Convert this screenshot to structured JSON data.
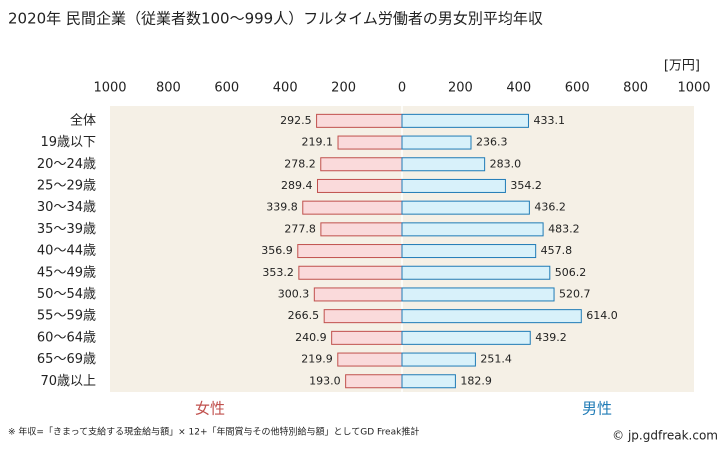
{
  "chart_data": {
    "type": "butterfly",
    "title": "2020年 民間企業（従業者数100～999人）フルタイム労働者の男女別平均年収",
    "unit": "[万円]",
    "categories": [
      "全体",
      "19歳以下",
      "20～24歳",
      "25～29歳",
      "30～34歳",
      "35～39歳",
      "40～44歳",
      "45～49歳",
      "50～54歳",
      "55～59歳",
      "60～64歳",
      "65～69歳",
      "70歳以上"
    ],
    "series": [
      {
        "name": "女性",
        "color": "#c0504d",
        "fill": "#fadadb",
        "side": "left",
        "values": [
          292.5,
          219.1,
          278.2,
          289.4,
          339.8,
          277.8,
          356.9,
          353.2,
          300.3,
          266.5,
          240.9,
          219.9,
          193.0
        ],
        "value_labels": [
          "292.5",
          "219.1",
          "278.2",
          "289.4",
          "339.8",
          "277.8",
          "356.9",
          "353.2",
          "300.3",
          "266.5",
          "240.9",
          "219.9",
          "193.0"
        ]
      },
      {
        "name": "男性",
        "color": "#1f7bb6",
        "fill": "#d8f1fa",
        "side": "right",
        "values": [
          433.1,
          236.3,
          283.0,
          354.2,
          436.2,
          483.2,
          457.8,
          506.2,
          520.7,
          614.0,
          439.2,
          251.4,
          182.9
        ],
        "value_labels": [
          "433.1",
          "236.3",
          "283.0",
          "354.2",
          "436.2",
          "483.2",
          "457.8",
          "506.2",
          "520.7",
          "614.0",
          "439.2",
          "251.4",
          "182.9"
        ]
      }
    ],
    "xlim": [
      -1000,
      1000
    ],
    "xticks": [
      {
        "value": -1000,
        "label": "1000"
      },
      {
        "value": -800,
        "label": "800"
      },
      {
        "value": -600,
        "label": "600"
      },
      {
        "value": -400,
        "label": "400"
      },
      {
        "value": -200,
        "label": "200"
      },
      0,
      200,
      400,
      600,
      800,
      1000
    ],
    "footnote": "※ 年収=「きまって支給する現金給与額」× 12+「年間賞与その他特別給与額」としてGD Freak推計",
    "credit": "© jp.gdfreak.com"
  }
}
